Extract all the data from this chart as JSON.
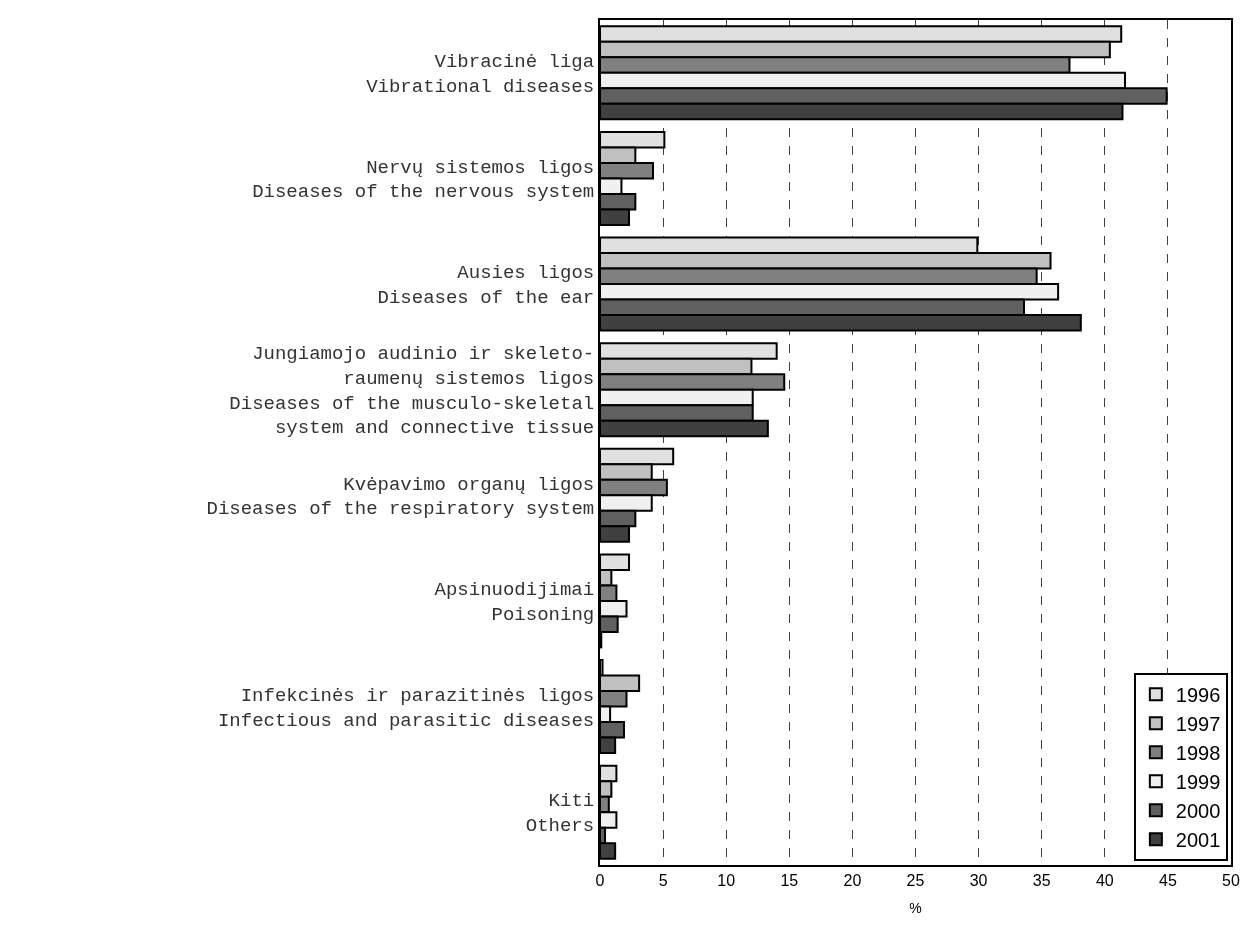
{
  "chart_data": {
    "type": "bar",
    "orientation": "horizontal",
    "xlabel": "%",
    "categories": [
      "Vibracinė liga\nVibrational diseases",
      "Nervų sistemos ligos\nDiseases of the nervous system",
      "Ausies ligos\nDiseases of the ear",
      "Jungiamojo audinio ir skeleto-\nraumenų sistemos ligos\nDiseases of the musculo-skeletal\nsystem and connective tissue",
      "Kvėpavimo organų ligos\nDiseases of the respiratory system",
      "Apsinuodijimai\nPoisoning",
      "Infekcinės ir parazitinės ligos\nInfectious and parasitic diseases",
      "Kiti\nOthers"
    ],
    "series": [
      {
        "name": "1996",
        "color": "#e0e0e0",
        "values": [
          41.3,
          5.1,
          29.9,
          14.0,
          5.8,
          2.3,
          0.2,
          1.3
        ]
      },
      {
        "name": "1997",
        "color": "#c0c0c0",
        "values": [
          40.4,
          2.8,
          35.7,
          12.0,
          4.1,
          0.9,
          3.1,
          0.9
        ]
      },
      {
        "name": "1998",
        "color": "#808080",
        "values": [
          37.2,
          4.2,
          34.6,
          14.6,
          5.3,
          1.3,
          2.1,
          0.7
        ]
      },
      {
        "name": "1999",
        "color": "#f0f0f0",
        "values": [
          41.6,
          1.7,
          36.3,
          12.1,
          4.1,
          2.1,
          0.8,
          1.3
        ]
      },
      {
        "name": "2000",
        "color": "#606060",
        "values": [
          44.9,
          2.8,
          33.6,
          12.1,
          2.8,
          1.4,
          1.9,
          0.4
        ]
      },
      {
        "name": "2001",
        "color": "#404040",
        "values": [
          41.4,
          2.3,
          38.1,
          13.3,
          2.3,
          0.1,
          1.2,
          1.2
        ]
      }
    ],
    "xlim": [
      0,
      50
    ],
    "xticks": [
      0,
      5,
      10,
      15,
      20,
      25,
      30,
      35,
      40,
      45,
      50
    ],
    "grid": "x",
    "legend": "bottom right"
  }
}
